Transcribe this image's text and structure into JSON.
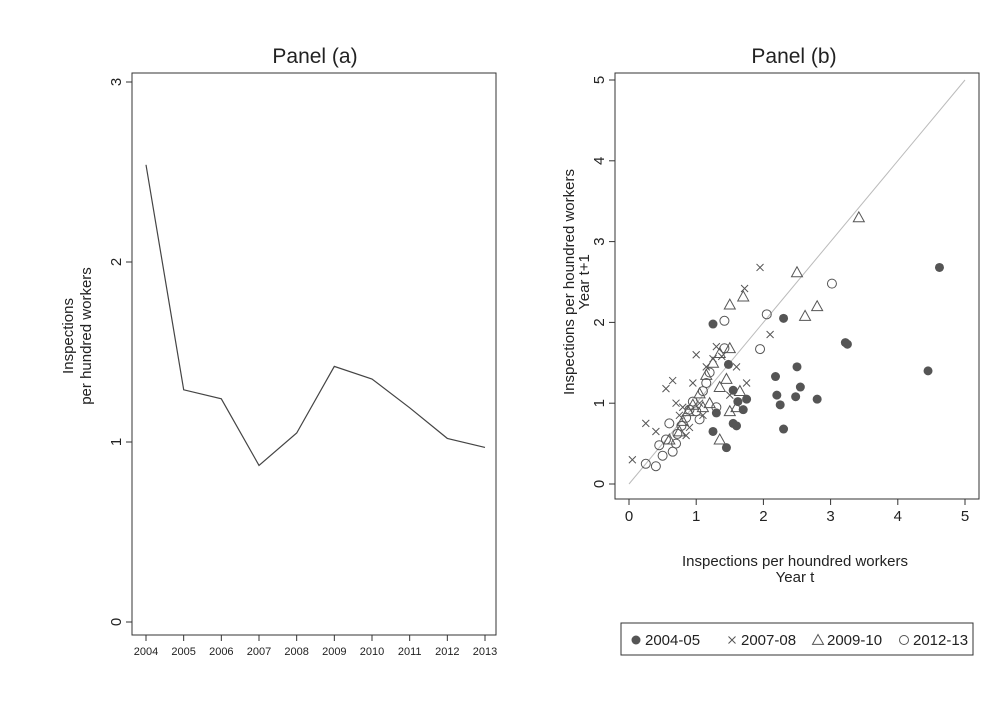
{
  "chart_data": [
    {
      "type": "line",
      "title": "Panel (a)",
      "ylabel_lines": [
        "Inspections",
        "per hundred workers"
      ],
      "xlabel": "",
      "x": [
        "2004",
        "2005",
        "2006",
        "2007",
        "2008",
        "2009",
        "2010",
        "2011",
        "2012",
        "2013"
      ],
      "series": [
        {
          "values": [
            2.54,
            1.29,
            1.24,
            0.87,
            1.05,
            1.42,
            1.35,
            1.19,
            1.02,
            0.97
          ]
        }
      ],
      "ylim": [
        0,
        3
      ],
      "yticks": [
        "0",
        "1",
        "2",
        "3"
      ],
      "grid": false,
      "colors": {
        "line": "#444444",
        "axis": "#333333"
      }
    },
    {
      "type": "scatter",
      "title": "Panel (b)",
      "xlabel_lines": [
        "Inspections per houndred workers",
        "Year t"
      ],
      "ylabel_lines": [
        "Inspections per houndred workers",
        "Year t+1"
      ],
      "xlim": [
        0,
        5
      ],
      "ylim": [
        0,
        5
      ],
      "xticks": [
        "0",
        "1",
        "2",
        "3",
        "4",
        "5"
      ],
      "yticks": [
        "0",
        "1",
        "2",
        "3",
        "4",
        "5"
      ],
      "grid": false,
      "reference_line": {
        "from": [
          0,
          0
        ],
        "to": [
          5,
          5
        ]
      },
      "legend_position": "bottom",
      "colors": {
        "marker": "#555555",
        "ref_line": "#bbbbbb",
        "axis": "#333333"
      },
      "series": [
        {
          "name": "2004-05",
          "marker": "filled-circle",
          "points": [
            [
              1.25,
              1.98
            ],
            [
              1.55,
              1.16
            ],
            [
              1.62,
              1.02
            ],
            [
              1.7,
              0.92
            ],
            [
              1.75,
              1.05
            ],
            [
              1.55,
              0.75
            ],
            [
              1.6,
              0.72
            ],
            [
              1.45,
              0.45
            ],
            [
              1.25,
              0.65
            ],
            [
              1.3,
              0.88
            ],
            [
              2.18,
              1.33
            ],
            [
              2.2,
              1.1
            ],
            [
              2.25,
              0.98
            ],
            [
              2.3,
              2.05
            ],
            [
              2.3,
              0.68
            ],
            [
              2.5,
              1.45
            ],
            [
              2.48,
              1.08
            ],
            [
              2.55,
              1.2
            ],
            [
              2.8,
              1.05
            ],
            [
              3.22,
              1.75
            ],
            [
              3.25,
              1.73
            ],
            [
              4.45,
              1.4
            ],
            [
              4.62,
              2.68
            ],
            [
              1.48,
              1.48
            ]
          ]
        },
        {
          "name": "2007-08",
          "marker": "cross",
          "points": [
            [
              0.05,
              0.3
            ],
            [
              0.25,
              0.75
            ],
            [
              0.4,
              0.65
            ],
            [
              0.55,
              1.18
            ],
            [
              0.65,
              1.28
            ],
            [
              0.7,
              1.0
            ],
            [
              0.75,
              0.85
            ],
            [
              0.85,
              0.6
            ],
            [
              0.9,
              0.7
            ],
            [
              0.95,
              1.25
            ],
            [
              1.0,
              1.6
            ],
            [
              1.05,
              1.0
            ],
            [
              1.15,
              1.45
            ],
            [
              1.25,
              1.55
            ],
            [
              1.3,
              1.7
            ],
            [
              1.38,
              1.58
            ],
            [
              1.5,
              1.1
            ],
            [
              1.6,
              1.45
            ],
            [
              1.75,
              1.25
            ],
            [
              1.72,
              2.42
            ],
            [
              1.95,
              2.68
            ],
            [
              2.1,
              1.85
            ],
            [
              0.8,
              0.95
            ],
            [
              1.1,
              0.85
            ]
          ]
        },
        {
          "name": "2009-10",
          "marker": "triangle",
          "points": [
            [
              0.6,
              0.55
            ],
            [
              0.75,
              0.65
            ],
            [
              0.8,
              0.78
            ],
            [
              0.88,
              0.9
            ],
            [
              0.95,
              0.98
            ],
            [
              1.05,
              1.12
            ],
            [
              1.15,
              1.35
            ],
            [
              1.25,
              1.5
            ],
            [
              1.35,
              1.2
            ],
            [
              1.35,
              1.62
            ],
            [
              1.45,
              1.3
            ],
            [
              1.5,
              1.68
            ],
            [
              1.5,
              2.22
            ],
            [
              1.7,
              2.32
            ],
            [
              1.35,
              0.55
            ],
            [
              1.5,
              0.9
            ],
            [
              1.6,
              0.95
            ],
            [
              1.65,
              1.15
            ],
            [
              2.5,
              2.62
            ],
            [
              2.62,
              2.08
            ],
            [
              2.8,
              2.2
            ],
            [
              3.42,
              3.3
            ],
            [
              1.2,
              1.0
            ],
            [
              1.1,
              0.95
            ]
          ]
        },
        {
          "name": "2012-13",
          "marker": "open-circle",
          "points": [
            [
              0.25,
              0.25
            ],
            [
              0.4,
              0.22
            ],
            [
              0.45,
              0.48
            ],
            [
              0.5,
              0.35
            ],
            [
              0.55,
              0.55
            ],
            [
              0.6,
              0.75
            ],
            [
              0.65,
              0.4
            ],
            [
              0.72,
              0.62
            ],
            [
              0.78,
              0.72
            ],
            [
              0.85,
              0.82
            ],
            [
              0.9,
              0.92
            ],
            [
              0.95,
              1.02
            ],
            [
              1.05,
              0.8
            ],
            [
              1.1,
              1.15
            ],
            [
              1.15,
              1.25
            ],
            [
              1.2,
              1.38
            ],
            [
              1.3,
              0.95
            ],
            [
              1.42,
              2.02
            ],
            [
              1.42,
              1.68
            ],
            [
              1.95,
              1.67
            ],
            [
              2.05,
              2.1
            ],
            [
              3.02,
              2.48
            ],
            [
              0.7,
              0.5
            ],
            [
              1.0,
              0.9
            ]
          ]
        }
      ]
    }
  ]
}
